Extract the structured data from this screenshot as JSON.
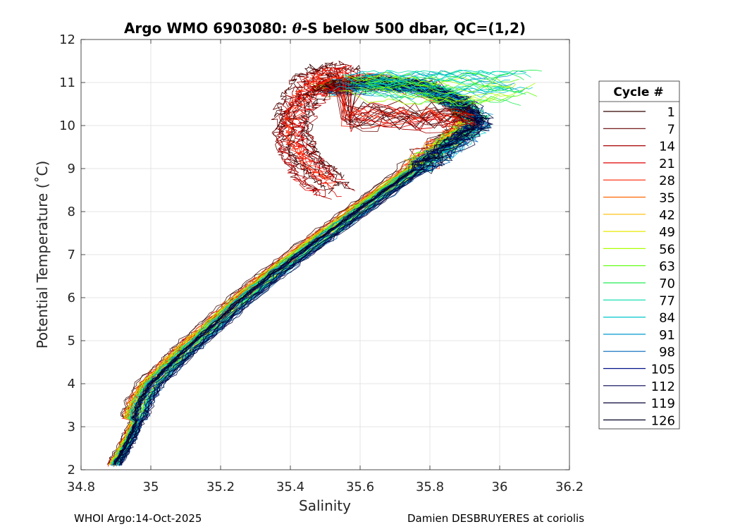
{
  "chart_data": {
    "type": "line",
    "title": "Argo WMO 6903080: θ-S below 500 dbar,  QC=(1,2)",
    "title_parts": {
      "before": "Argo WMO 6903080: ",
      "theta": "θ",
      "after": "-S below 500 dbar,  QC=(1,2)"
    },
    "xlabel": "Salinity",
    "ylabel": "Potential Temperature (˚C)",
    "xlim": [
      34.8,
      36.2
    ],
    "ylim": [
      2,
      12
    ],
    "xticks": [
      34.8,
      35,
      35.2,
      35.4,
      35.6,
      35.8,
      36,
      36.2
    ],
    "xtick_labels": [
      "34.8",
      "35",
      "35.2",
      "35.4",
      "35.6",
      "35.8",
      "36",
      "36.2"
    ],
    "yticks": [
      2,
      3,
      4,
      5,
      6,
      7,
      8,
      9,
      10,
      11,
      12
    ],
    "ytick_labels": [
      "2",
      "3",
      "4",
      "5",
      "6",
      "7",
      "8",
      "9",
      "10",
      "11",
      "12"
    ],
    "grid": true,
    "legend": {
      "title": "Cycle #",
      "placement": "right-outside",
      "entries": [
        "1",
        "7",
        "14",
        "21",
        "28",
        "35",
        "42",
        "49",
        "56",
        "63",
        "70",
        "77",
        "84",
        "91",
        "98",
        "105",
        "112",
        "119",
        "126"
      ],
      "colors": [
        "#330000",
        "#660000",
        "#a80000",
        "#e00000",
        "#ff2200",
        "#ff6600",
        "#ffbb00",
        "#e8e800",
        "#aaff00",
        "#55ff00",
        "#22ee55",
        "#00ddaa",
        "#00c8cc",
        "#0099cc",
        "#0066bb",
        "#001188",
        "#000055",
        "#000033",
        "#000022"
      ]
    },
    "series_note": "θ-S profiles per cycle; colored by cycle number from red (early) through green to blue/black (late)",
    "curve_centerline": [
      {
        "x": 34.905,
        "y": 2.12
      },
      {
        "x": 34.93,
        "y": 2.45
      },
      {
        "x": 34.955,
        "y": 2.85
      },
      {
        "x": 34.975,
        "y": 3.25
      },
      {
        "x": 34.99,
        "y": 3.6
      },
      {
        "x": 35.02,
        "y": 4.0
      },
      {
        "x": 35.07,
        "y": 4.4
      },
      {
        "x": 35.12,
        "y": 4.8
      },
      {
        "x": 35.19,
        "y": 5.3
      },
      {
        "x": 35.27,
        "y": 5.9
      },
      {
        "x": 35.36,
        "y": 6.5
      },
      {
        "x": 35.45,
        "y": 7.05
      },
      {
        "x": 35.55,
        "y": 7.65
      },
      {
        "x": 35.65,
        "y": 8.25
      },
      {
        "x": 35.76,
        "y": 8.9
      },
      {
        "x": 35.86,
        "y": 9.5
      },
      {
        "x": 35.95,
        "y": 10.05
      },
      {
        "x": 35.9,
        "y": 10.5
      },
      {
        "x": 35.8,
        "y": 10.9
      },
      {
        "x": 35.65,
        "y": 11.0
      },
      {
        "x": 35.52,
        "y": 10.85
      }
    ],
    "red_loop_centerline": [
      {
        "x": 35.52,
        "y": 8.6
      },
      {
        "x": 35.45,
        "y": 9.0
      },
      {
        "x": 35.41,
        "y": 9.5
      },
      {
        "x": 35.4,
        "y": 10.0
      },
      {
        "x": 35.42,
        "y": 10.5
      },
      {
        "x": 35.46,
        "y": 10.9
      },
      {
        "x": 35.5,
        "y": 11.1
      },
      {
        "x": 35.56,
        "y": 11.15
      }
    ]
  },
  "footer": {
    "left": "WHOI Argo:14-Oct-2025",
    "right": "Damien DESBRUYERES at coriolis"
  }
}
